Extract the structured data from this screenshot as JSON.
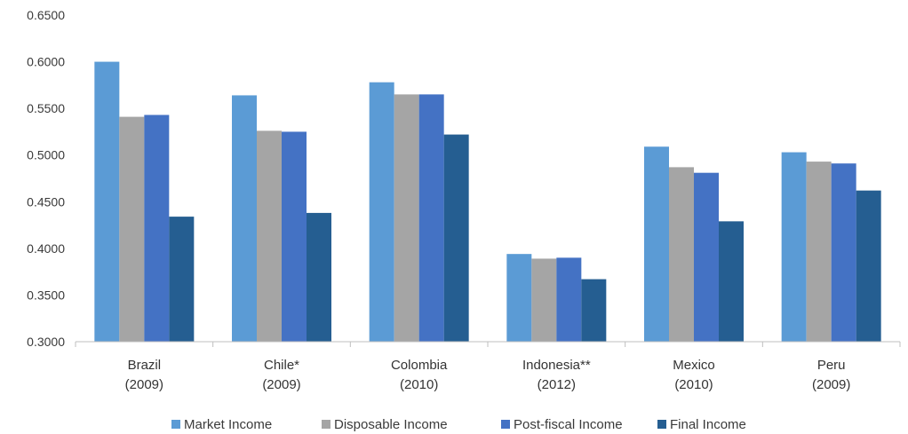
{
  "chart_data": {
    "type": "bar",
    "title": "",
    "xlabel": "",
    "ylabel": "",
    "ylim": [
      0.3,
      0.65
    ],
    "yticks": [
      "0.3000",
      "0.3500",
      "0.4000",
      "0.4500",
      "0.5000",
      "0.5500",
      "0.6000",
      "0.6500"
    ],
    "categories": [
      [
        "Brazil",
        "(2009)"
      ],
      [
        "Chile*",
        "(2009)"
      ],
      [
        "Colombia",
        "(2010)"
      ],
      [
        "Indonesia**",
        "(2012)"
      ],
      [
        "Mexico",
        "(2010)"
      ],
      [
        "Peru",
        "(2009)"
      ]
    ],
    "series": [
      {
        "name": "Market Income",
        "color": "#5b9bd5",
        "values": [
          0.6,
          0.564,
          0.578,
          0.394,
          0.509,
          0.503
        ]
      },
      {
        "name": "Disposable Income",
        "color": "#a5a5a5",
        "values": [
          0.541,
          0.526,
          0.565,
          0.389,
          0.487,
          0.493
        ]
      },
      {
        "name": "Post-fiscal Income",
        "color": "#4472c4",
        "values": [
          0.543,
          0.525,
          0.565,
          0.39,
          0.481,
          0.491
        ]
      },
      {
        "name": "Final Income",
        "color": "#255e91",
        "values": [
          0.434,
          0.438,
          0.522,
          0.367,
          0.429,
          0.462
        ]
      }
    ],
    "grid": false,
    "legend_position": "bottom"
  }
}
